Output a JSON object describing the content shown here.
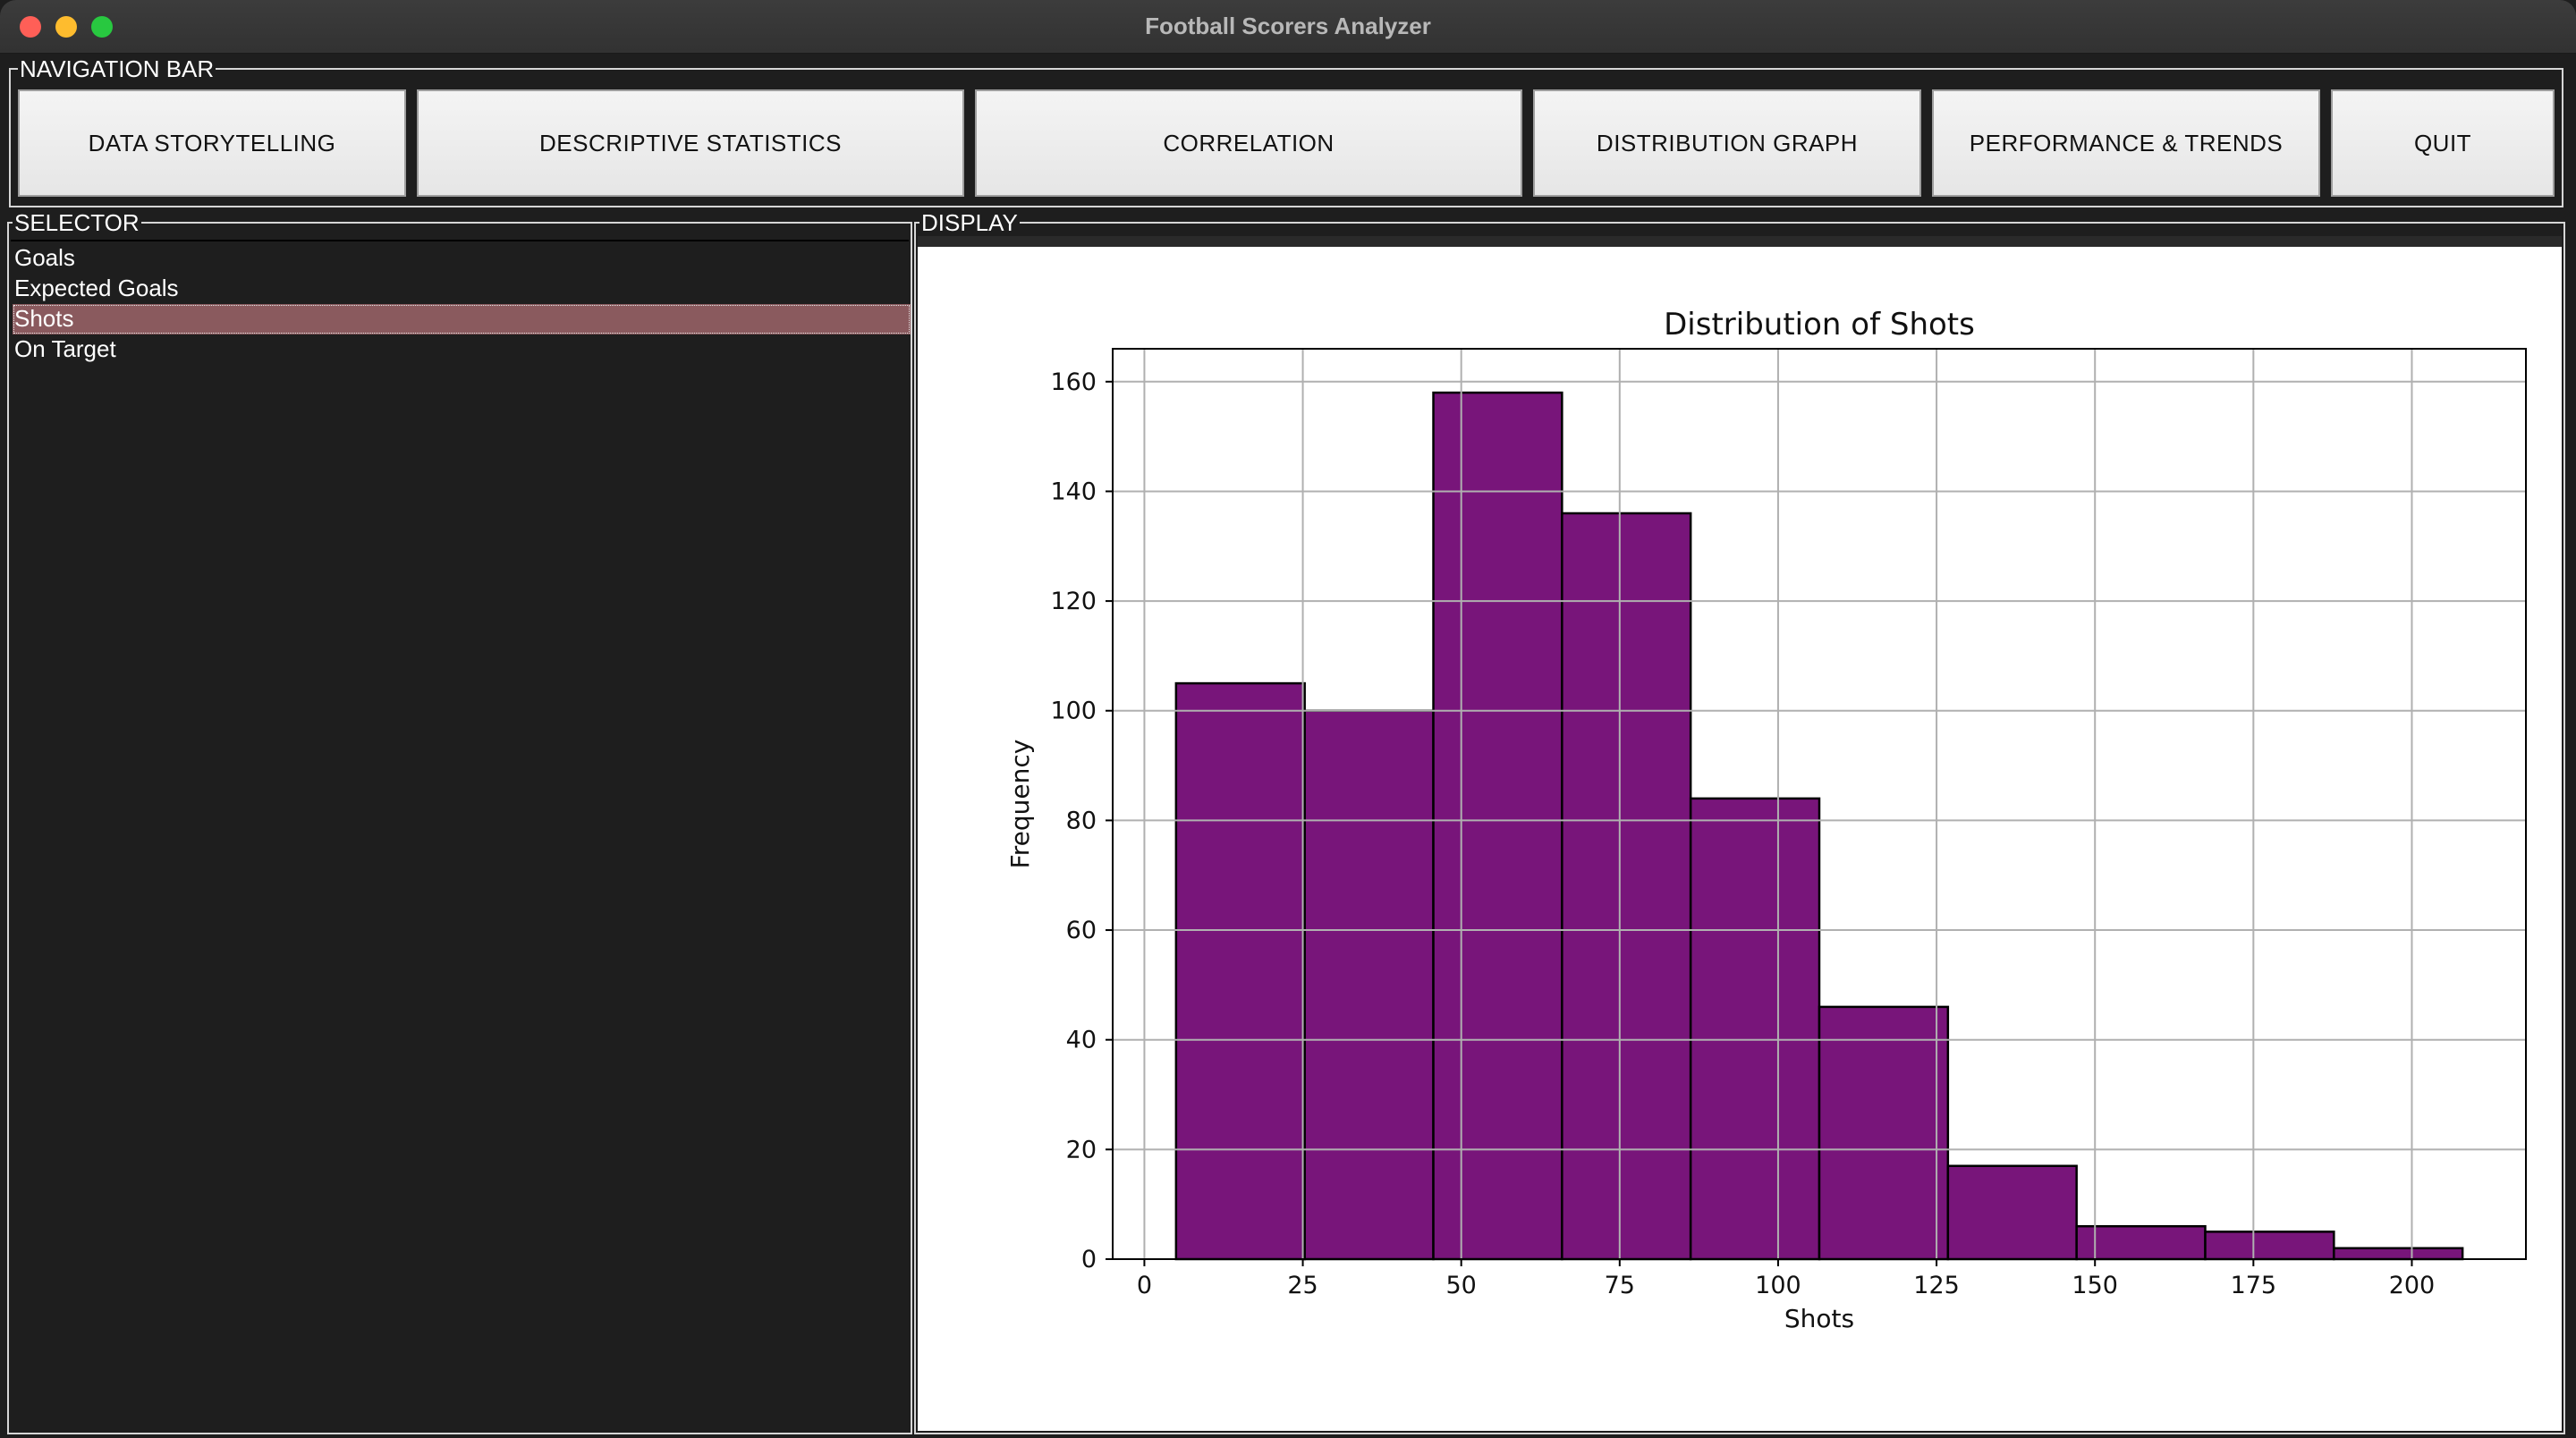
{
  "window": {
    "title": "Football Scorers Analyzer",
    "controls": [
      "close",
      "minimize",
      "zoom"
    ]
  },
  "navbar": {
    "legend": "NAVIGATION BAR",
    "buttons": [
      {
        "label": "DATA STORYTELLING"
      },
      {
        "label": "DESCRIPTIVE STATISTICS"
      },
      {
        "label": "CORRELATION"
      },
      {
        "label": "DISTRIBUTION GRAPH"
      },
      {
        "label": "PERFORMANCE & TRENDS"
      },
      {
        "label": "QUIT"
      }
    ]
  },
  "selector": {
    "legend": "SELECTOR",
    "items": [
      {
        "label": "Goals"
      },
      {
        "label": "Expected Goals"
      },
      {
        "label": "Shots"
      },
      {
        "label": "On Target"
      }
    ],
    "selected": "Shots"
  },
  "display": {
    "legend": "DISPLAY"
  },
  "colors": {
    "bar_fill": "#78157a",
    "bar_edge": "#000000",
    "selection": "#8a5a5e"
  },
  "chart_data": {
    "type": "bar",
    "title": "Distribution of Shots",
    "xlabel": "Shots",
    "ylabel": "Frequency",
    "bins": [
      {
        "start": 5,
        "end": 25.3,
        "count": 105
      },
      {
        "start": 25.3,
        "end": 45.6,
        "count": 100
      },
      {
        "start": 45.6,
        "end": 65.9,
        "count": 158
      },
      {
        "start": 65.9,
        "end": 86.2,
        "count": 136
      },
      {
        "start": 86.2,
        "end": 106.5,
        "count": 84
      },
      {
        "start": 106.5,
        "end": 126.8,
        "count": 46
      },
      {
        "start": 126.8,
        "end": 147.1,
        "count": 17
      },
      {
        "start": 147.1,
        "end": 167.4,
        "count": 6
      },
      {
        "start": 167.4,
        "end": 187.7,
        "count": 5
      },
      {
        "start": 187.7,
        "end": 208,
        "count": 2
      }
    ],
    "xlim": [
      -5,
      218
    ],
    "ylim": [
      0,
      166
    ],
    "xticks": [
      0,
      25,
      50,
      75,
      100,
      125,
      150,
      175,
      200
    ],
    "yticks": [
      0,
      20,
      40,
      60,
      80,
      100,
      120,
      140,
      160
    ],
    "grid": true
  }
}
